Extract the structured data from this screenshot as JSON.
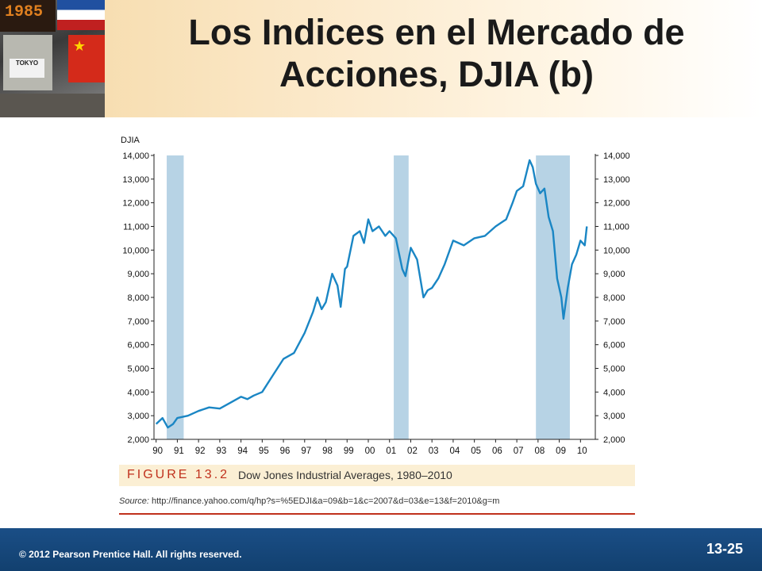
{
  "slide": {
    "title": "Los Indices en el Mercado de Acciones, DJIA (b)",
    "copyright": "© 2012 Pearson Prentice Hall. All rights reserved.",
    "slide_number": "13-25",
    "colors": {
      "footer": "#1a4e86",
      "line": "#1a86c4",
      "recession": "#b7d3e5",
      "accent": "#c0311d"
    }
  },
  "figure": {
    "label": "FIGURE 13.2",
    "title": "Dow Jones Industrial Averages, 1980–2010",
    "source_label": "Source:",
    "source_url": "http://finance.yahoo.com/q/hp?s=%5EDJI&a=09&b=1&c=2007&d=03&e=13&f=2010&g=m"
  },
  "chart_data": {
    "type": "line",
    "ylabel": "DJIA",
    "ylim": [
      2000,
      14000
    ],
    "xlim": [
      1989.9,
      2010.4
    ],
    "yticks": [
      2000,
      3000,
      4000,
      5000,
      6000,
      7000,
      8000,
      9000,
      10000,
      11000,
      12000,
      13000,
      14000
    ],
    "ytick_labels": [
      "2,000",
      "3,000",
      "4,000",
      "5,000",
      "6,000",
      "7,000",
      "8,000",
      "9,000",
      "10,000",
      "11,000",
      "12,000",
      "13,000",
      "14,000"
    ],
    "xticks": [
      1990,
      1991,
      1992,
      1993,
      1994,
      1995,
      1996,
      1997,
      1998,
      1999,
      2000,
      2001,
      2002,
      2003,
      2004,
      2005,
      2006,
      2007,
      2008,
      2009,
      2010
    ],
    "xtick_labels": [
      "90",
      "91",
      "92",
      "93",
      "94",
      "95",
      "96",
      "97",
      "98",
      "99",
      "00",
      "01",
      "02",
      "03",
      "04",
      "05",
      "06",
      "07",
      "08",
      "09",
      "10"
    ],
    "recessions": [
      [
        1990.5,
        1991.3
      ],
      [
        2001.2,
        2001.9
      ],
      [
        2007.9,
        2009.5
      ]
    ],
    "series": [
      {
        "x": [
          1990.0,
          1990.3,
          1990.55,
          1990.8,
          1991.0,
          1991.5,
          1992.0,
          1992.5,
          1993.0,
          1993.5,
          1994.0,
          1994.3,
          1994.6,
          1995.0,
          1995.5,
          1996.0,
          1996.5,
          1997.0,
          1997.4,
          1997.6,
          1997.8,
          1998.0,
          1998.3,
          1998.55,
          1998.7,
          1998.9,
          1999.0,
          1999.3,
          1999.6,
          1999.8,
          2000.0,
          2000.2,
          2000.5,
          2000.8,
          2001.0,
          2001.3,
          2001.6,
          2001.75,
          2002.0,
          2002.3,
          2002.6,
          2002.8,
          2003.0,
          2003.3,
          2003.6,
          2004.0,
          2004.5,
          2005.0,
          2005.5,
          2006.0,
          2006.5,
          2006.8,
          2007.0,
          2007.3,
          2007.6,
          2007.75,
          2007.9,
          2008.1,
          2008.3,
          2008.5,
          2008.7,
          2008.9,
          2009.1,
          2009.2,
          2009.4,
          2009.6,
          2009.8,
          2010.0,
          2010.2,
          2010.3
        ],
        "y": [
          2650,
          2900,
          2500,
          2650,
          2900,
          3000,
          3200,
          3350,
          3300,
          3550,
          3800,
          3700,
          3850,
          4000,
          4700,
          5400,
          5650,
          6500,
          7400,
          8000,
          7500,
          7800,
          9000,
          8500,
          7600,
          9200,
          9300,
          10600,
          10800,
          10300,
          11300,
          10800,
          11000,
          10600,
          10800,
          10500,
          9200,
          8900,
          10100,
          9600,
          8000,
          8300,
          8400,
          8800,
          9400,
          10400,
          10200,
          10500,
          10600,
          11000,
          11300,
          12000,
          12500,
          12700,
          13800,
          13500,
          12800,
          12400,
          12600,
          11400,
          10800,
          8800,
          8000,
          7100,
          8400,
          9400,
          9800,
          10400,
          10200,
          11000
        ]
      }
    ]
  }
}
